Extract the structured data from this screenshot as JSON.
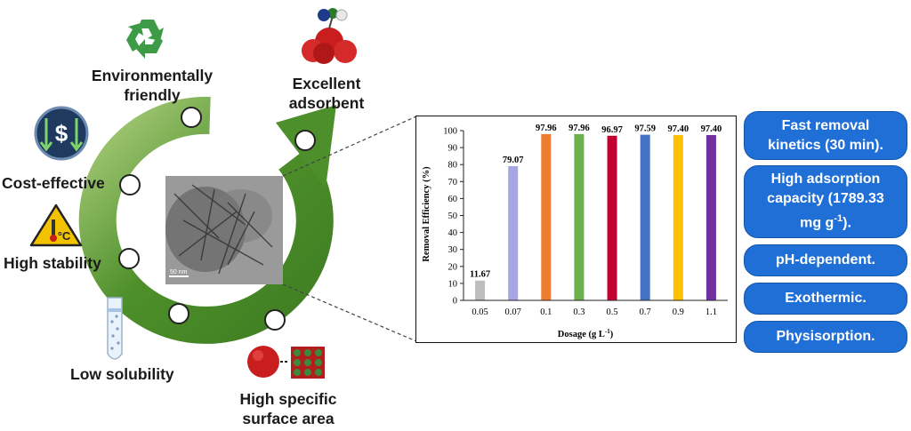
{
  "labels": {
    "environmentally_friendly_1": "Environmentally",
    "environmentally_friendly_2": "friendly",
    "excellent_adsorbent_1": "Excellent",
    "excellent_adsorbent_2": "adsorbent",
    "cost_effective": "Cost-effective",
    "high_stability": "High stability",
    "low_solubility": "Low solubility",
    "surface_area_1": "High specific",
    "surface_area_2": "surface area",
    "thermo_glyph": "°C",
    "dollar_glyph": "$",
    "scale_bar": "50 nm"
  },
  "pills": {
    "fast_removal_1": "Fast removal",
    "fast_removal_2": "kinetics (30 min).",
    "capacity_1": "High adsorption",
    "capacity_2": "capacity (1789.33",
    "capacity_3a": "mg g",
    "capacity_3sup": "-1",
    "capacity_3b": ").",
    "ph": "pH-dependent.",
    "exothermic": "Exothermic.",
    "physisorption": "Physisorption."
  },
  "colors": {
    "arrow_green": "#4d8f2a",
    "pill_blue": "#1f6fd6",
    "recycle_green": "#3d9b47",
    "dollar_navy": "#1e3a5f",
    "warning_yellow": "#f2c200",
    "sphere_red": "#c81e1e"
  },
  "chart_data": {
    "type": "bar",
    "categories": [
      "0.05",
      "0.07",
      "0.1",
      "0.3",
      "0.5",
      "0.7",
      "0.9",
      "1.1"
    ],
    "values": [
      11.67,
      79.07,
      97.96,
      97.96,
      96.97,
      97.59,
      97.4,
      97.4
    ],
    "data_labels": [
      "11.67",
      "79.07",
      "97.96",
      "97.96",
      "96.97",
      "97.59",
      "97.40",
      "97.40"
    ],
    "colors": [
      "#bdbdbd",
      "#a6a6e6",
      "#ee7d2f",
      "#6bb04a",
      "#c3002f",
      "#4472c4",
      "#ffc000",
      "#7030a0"
    ],
    "xlabel": "Dosage (g L",
    "xlabel_sup": "-1",
    "xlabel_end": ")",
    "ylabel": "Removal Efficiency (%)",
    "ylim": [
      0,
      100
    ],
    "yticks": [
      "0",
      "10",
      "20",
      "30",
      "40",
      "50",
      "60",
      "70",
      "80",
      "90",
      "100"
    ]
  }
}
